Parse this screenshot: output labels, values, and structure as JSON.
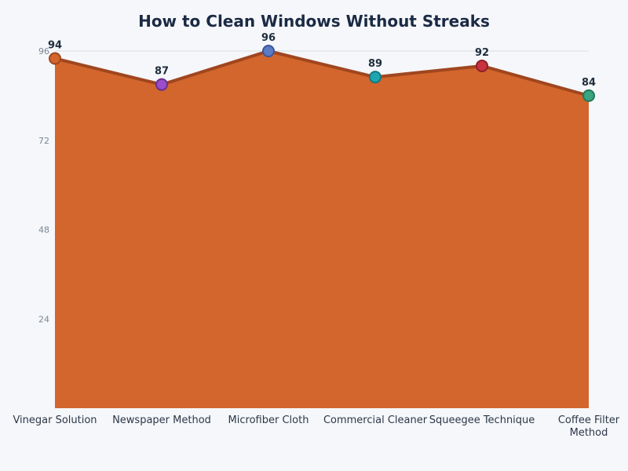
{
  "chart_data": {
    "type": "area",
    "title": "How to Clean Windows Without Streaks",
    "xlabel": "",
    "ylabel": "",
    "categories": [
      "Vinegar Solution",
      "Newspaper Method",
      "Microfiber Cloth",
      "Commercial Cleaner",
      "Squeegee Technique",
      "Coffee Filter Method"
    ],
    "category_lines": [
      [
        "Vinegar Solution"
      ],
      [
        "Newspaper Method"
      ],
      [
        "Microfiber Cloth"
      ],
      [
        "Commercial Cleaner"
      ],
      [
        "Squeegee Technique"
      ],
      [
        "Coffee Filter",
        "Method"
      ]
    ],
    "values": [
      94,
      87,
      96,
      89,
      92,
      84
    ],
    "ylim": [
      0,
      96
    ],
    "yticks": [
      24,
      48,
      72,
      96
    ],
    "grid": true,
    "legend": "none",
    "colors": {
      "area_fill": "#d2662c",
      "area_line": "#a0461f",
      "markers": [
        "#d2662c",
        "#9b4dca",
        "#5b7bc4",
        "#1ea5b0",
        "#c8333f",
        "#3aa57e"
      ],
      "marker_stroke": [
        "#a0461f",
        "#6b2f8f",
        "#3d559a",
        "#137a82",
        "#8e1f28",
        "#24785a"
      ],
      "grid": "#d9dde3",
      "background": "#f5f7fa"
    }
  }
}
